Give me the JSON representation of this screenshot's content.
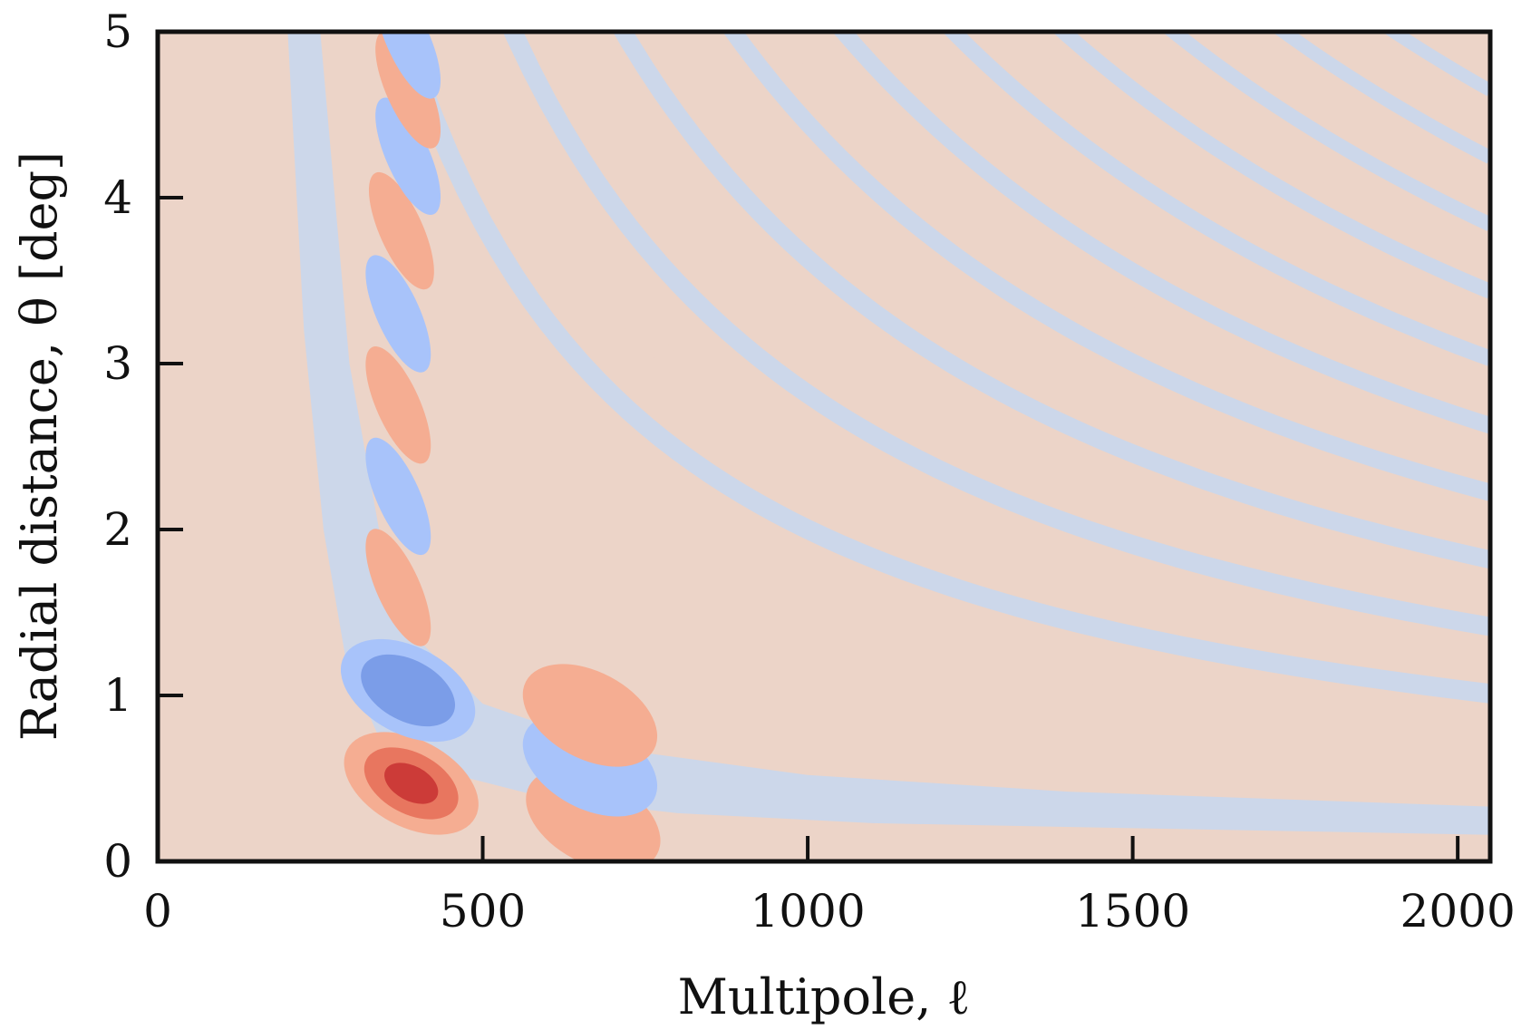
{
  "chart_data": {
    "type": "heatmap",
    "subtype": "filled-contour",
    "title": "",
    "xlabel": "Multipole, ℓ",
    "ylabel": "Radial distance, θ [deg]",
    "xlim": [
      0,
      2050
    ],
    "ylim": [
      0,
      5
    ],
    "xticks": [
      0,
      500,
      1000,
      1500,
      2000
    ],
    "xtick_labels": [
      "0",
      "500",
      "1000",
      "1500",
      "2000"
    ],
    "yticks": [
      0,
      1,
      2,
      3,
      4,
      5
    ],
    "ytick_labels": [
      "0",
      "1",
      "2",
      "3",
      "4",
      "5"
    ],
    "grid": false,
    "legend": "none",
    "colormap": "coolwarm (diverging)",
    "colors": {
      "strong_positive": "#cc3b38",
      "positive_2": "#e8765f",
      "positive_1": "#f5ad92",
      "near_zero_positive": "#ecd4c8",
      "near_zero_negative": "#ccd7ea",
      "negative_1": "#a8c3fa",
      "strong_negative": "#7b9de8"
    },
    "bands": [
      {
        "name": "main-negative-band",
        "sign": "negative",
        "level": 1,
        "curve": [
          [
            200,
            5.0
          ],
          [
            225,
            3.2
          ],
          [
            255,
            2.0
          ],
          [
            290,
            1.2
          ],
          [
            340,
            0.75
          ],
          [
            430,
            0.55
          ],
          [
            600,
            0.38
          ],
          [
            800,
            0.29
          ],
          [
            1100,
            0.23
          ],
          [
            1500,
            0.2
          ],
          [
            2050,
            0.16
          ]
        ]
      },
      {
        "name": "main-negative-band-upper",
        "sign": "negative",
        "level": 1,
        "curve": [
          [
            250,
            5.0
          ],
          [
            295,
            3.0
          ],
          [
            345,
            1.9
          ],
          [
            410,
            1.3
          ],
          [
            500,
            0.95
          ],
          [
            700,
            0.68
          ],
          [
            1000,
            0.52
          ],
          [
            1400,
            0.42
          ],
          [
            2050,
            0.33
          ]
        ]
      }
    ],
    "peaks": [
      {
        "l": 390,
        "theta": 0.47,
        "sign": "positive",
        "level": 3
      },
      {
        "l": 385,
        "theta": 1.03,
        "sign": "negative",
        "level": 2
      },
      {
        "l": 370,
        "theta": 1.65,
        "sign": "positive",
        "level": 1
      },
      {
        "l": 370,
        "theta": 2.2,
        "sign": "negative",
        "level": 1
      },
      {
        "l": 370,
        "theta": 2.75,
        "sign": "positive",
        "level": 1
      },
      {
        "l": 370,
        "theta": 3.3,
        "sign": "negative",
        "level": 1
      },
      {
        "l": 375,
        "theta": 3.8,
        "sign": "positive",
        "level": 1
      },
      {
        "l": 385,
        "theta": 4.25,
        "sign": "negative",
        "level": 1
      },
      {
        "l": 385,
        "theta": 4.65,
        "sign": "positive",
        "level": 1
      },
      {
        "l": 385,
        "theta": 4.95,
        "sign": "negative",
        "level": 1
      },
      {
        "l": 670,
        "theta": 0.25,
        "sign": "positive",
        "level": 1
      },
      {
        "l": 665,
        "theta": 0.58,
        "sign": "negative",
        "level": 1
      },
      {
        "l": 665,
        "theta": 0.88,
        "sign": "positive",
        "level": 1
      }
    ]
  }
}
